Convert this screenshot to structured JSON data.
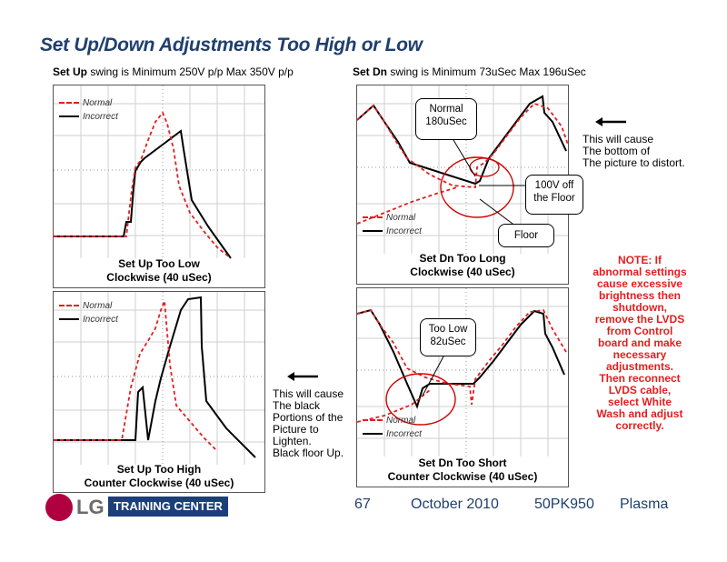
{
  "title": "Set Up/Down Adjustments Too High or Low",
  "left_caption": {
    "bold": "Set Up",
    "rest": " swing is Minimum 250V p/p Max 350V p/p"
  },
  "right_caption": {
    "bold": "Set Dn",
    "rest": " swing is Minimum 73uSec Max 196uSec"
  },
  "scopes": {
    "up_low": {
      "legend_normal": "Normal",
      "legend_incorrect": "Incorrect",
      "label_line1": "Set Up Too Low",
      "label_line2": "Clockwise (40 uSec)"
    },
    "up_high": {
      "legend_normal": "Normal",
      "legend_incorrect": "Incorrect",
      "label_line1": "Set Up Too High",
      "label_line2": "Counter Clockwise (40 uSec)"
    },
    "dn_long": {
      "legend_normal": "Normal",
      "legend_incorrect": "Incorrect",
      "label_line1": "Set Dn Too Long",
      "label_line2": "Clockwise (40 uSec)"
    },
    "dn_short": {
      "legend_normal": "Normal",
      "legend_incorrect": "Incorrect",
      "label_line1": "Set Dn Too Short",
      "label_line2": "Counter Clockwise (40 uSec)"
    }
  },
  "callouts": {
    "normal180": {
      "line1": "Normal",
      "line2": "180uSec"
    },
    "floor100": {
      "line1": "100V off",
      "line2": "the Floor"
    },
    "floor": "Floor",
    "toolow": {
      "line1": "Too Low",
      "line2": "82uSec"
    }
  },
  "note_right": {
    "line1": "This will cause",
    "line2": "The bottom of",
    "line3": "The picture to distort."
  },
  "note_left": {
    "line1": "This will cause",
    "line2": "The black",
    "line3": "Portions of the",
    "line4": "Picture to",
    "line5": "Lighten.",
    "line6": "Black floor Up."
  },
  "red_note": {
    "line1": "NOTE: If",
    "line2": "abnormal settings",
    "line3": "cause excessive",
    "line4": "brightness then",
    "line5": "shutdown,",
    "line6": "remove the LVDS",
    "line7": "from Control",
    "line8": "board and make",
    "line9": "necessary",
    "line10": "adjustments.",
    "line11": "Then reconnect",
    "line12": "LVDS cable,",
    "line13": "select White",
    "line14": "Wash and adjust",
    "line15": "correctly."
  },
  "footer": {
    "logo_text": "LG",
    "training_center": "TRAINING CENTER",
    "page": "67",
    "date": "October 2010",
    "model": "50PK950",
    "product": "Plasma"
  },
  "colors": {
    "title": "#1f3f6e",
    "normal_trace": "#e02020",
    "incorrect_trace": "#000000",
    "note_red": "#e41e1e",
    "tc_box": "#1b3f7a",
    "lg_logo": "#b1003f"
  }
}
